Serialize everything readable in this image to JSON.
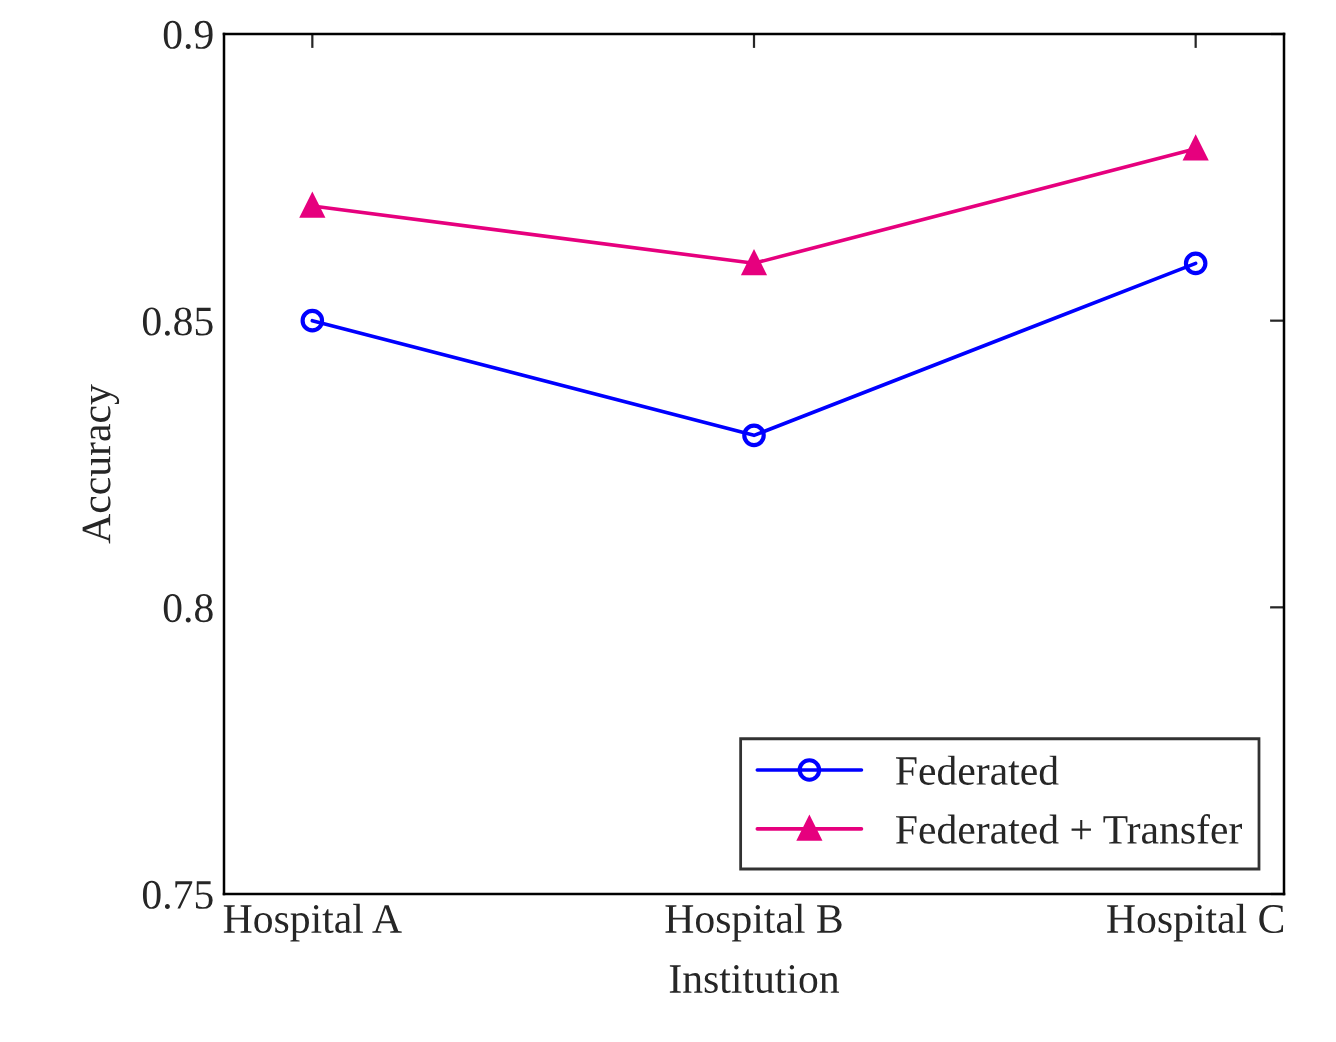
{
  "chart_data": {
    "type": "line",
    "xlabel": "Institution",
    "ylabel": "Accuracy",
    "categories": [
      "Hospital A",
      "Hospital B",
      "Hospital C"
    ],
    "series": [
      {
        "name": "Federated",
        "color": "#0000ff",
        "values": [
          0.85,
          0.83,
          0.86
        ],
        "marker": "circle"
      },
      {
        "name": "Federated + Transfer",
        "color": "#e6007e",
        "values": [
          0.87,
          0.86,
          0.88
        ],
        "marker": "triangle"
      }
    ],
    "ylim": [
      0.75,
      0.9
    ],
    "yticks": [
      0.75,
      0.8,
      0.85,
      0.9
    ],
    "grid": false,
    "legend": "bottom right",
    "line_style": "solid"
  }
}
